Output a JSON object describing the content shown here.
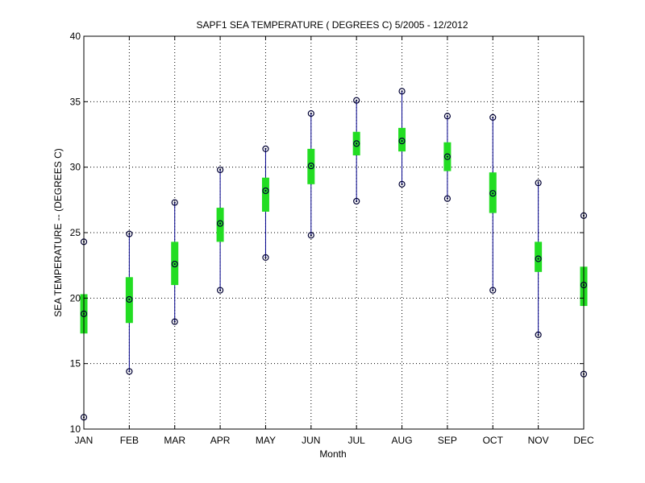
{
  "chart_data": {
    "type": "box",
    "title": "SAPF1  SEA TEMPERATURE ( DEGREES C) 5/2005 - 12/2012",
    "xlabel": "Month",
    "ylabel": "SEA TEMPERATURE -- (DEGREES C)",
    "categories": [
      "JAN",
      "FEB",
      "MAR",
      "APR",
      "MAY",
      "JUN",
      "JUL",
      "AUG",
      "SEP",
      "OCT",
      "NOV",
      "DEC"
    ],
    "min": [
      10.9,
      14.4,
      18.2,
      20.6,
      23.1,
      24.8,
      27.4,
      28.7,
      27.6,
      20.6,
      17.2,
      14.2
    ],
    "q1": [
      17.3,
      18.1,
      21.0,
      24.3,
      26.6,
      28.7,
      30.9,
      31.2,
      29.7,
      26.5,
      22.0,
      19.4
    ],
    "median": [
      18.8,
      19.9,
      22.6,
      25.7,
      28.2,
      30.1,
      31.8,
      32.0,
      30.8,
      28.0,
      23.0,
      21.0
    ],
    "q3": [
      20.3,
      21.6,
      24.3,
      26.9,
      29.2,
      31.4,
      32.7,
      33.0,
      31.9,
      29.6,
      24.3,
      22.4
    ],
    "max": [
      24.3,
      24.9,
      27.3,
      29.8,
      31.4,
      34.1,
      35.1,
      35.8,
      33.9,
      33.8,
      28.8,
      26.3
    ],
    "yticks": [
      10,
      15,
      20,
      25,
      30,
      35,
      40
    ],
    "ylim": [
      10,
      40
    ],
    "grid": true,
    "colors": {
      "whisker": "#00008b",
      "box": "#22dd22",
      "marker": "#000033",
      "grid": "#000000"
    }
  }
}
